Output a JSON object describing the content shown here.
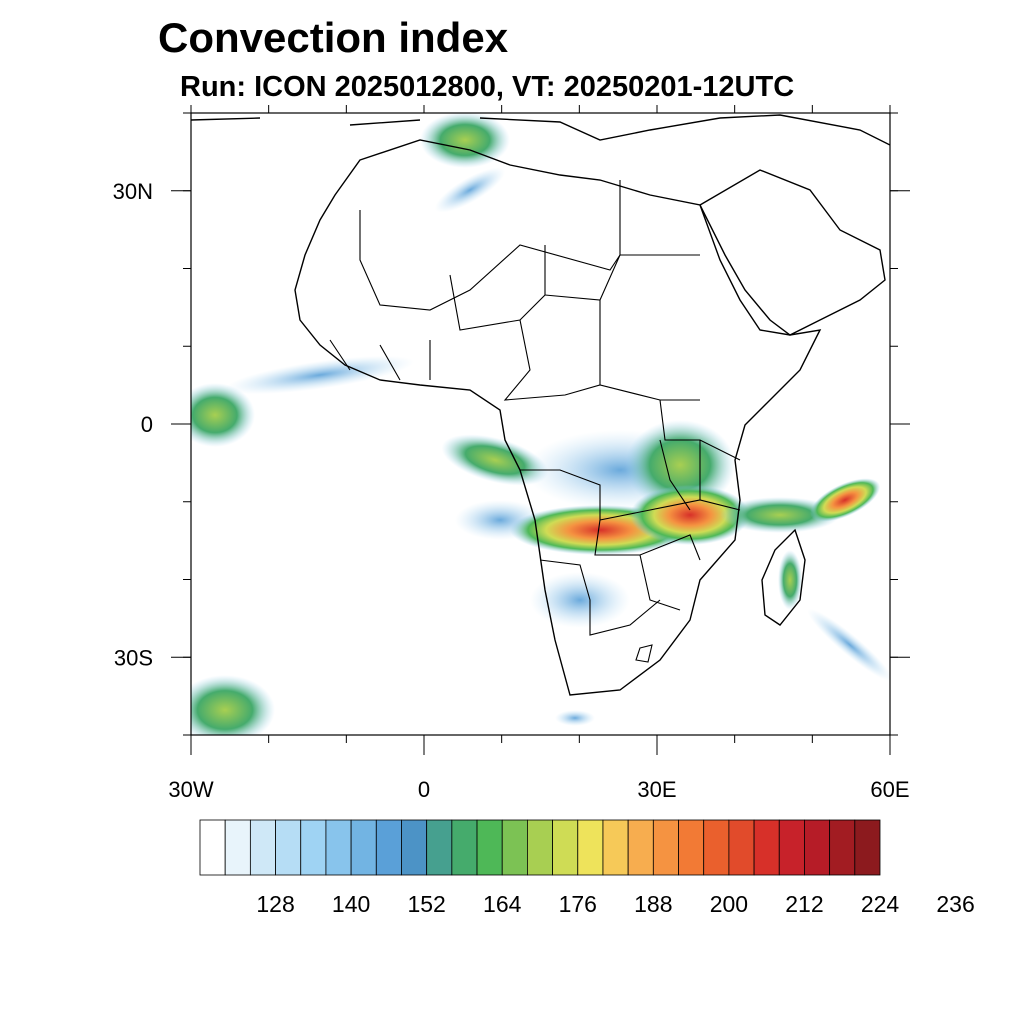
{
  "title": "Convection index",
  "subtitle": "Run: ICON 2025012800,  VT: 20250201-12UTC",
  "map": {
    "lon_range": [
      -30,
      60
    ],
    "lat_range": [
      -40,
      40
    ],
    "lon_ticks": [
      {
        "value": -30,
        "label": "30W"
      },
      {
        "value": 0,
        "label": "0"
      },
      {
        "value": 30,
        "label": "30E"
      },
      {
        "value": 60,
        "label": "60E"
      }
    ],
    "lat_ticks": [
      {
        "value": 30,
        "label": "30N"
      },
      {
        "value": 0,
        "label": "0"
      },
      {
        "value": -30,
        "label": "30S"
      }
    ],
    "minor_lon_step": 10,
    "minor_lat_step": 10
  },
  "colorbar": {
    "colors": [
      "#ffffff",
      "#e8f4fb",
      "#cfe8f7",
      "#b6ddf5",
      "#9fd3f3",
      "#88c4ec",
      "#72b4e3",
      "#5aa0d8",
      "#4c93c6",
      "#46a08f",
      "#45ab6c",
      "#4eb857",
      "#7cc254",
      "#a8cf52",
      "#cfdc55",
      "#eee35b",
      "#f6c958",
      "#f7ad4f",
      "#f59341",
      "#f27a35",
      "#ea602d",
      "#e14b2b",
      "#d73029",
      "#c7222a",
      "#b61c27",
      "#a21c22",
      "#8c1a1e"
    ],
    "labels": [
      "128",
      "140",
      "152",
      "164",
      "176",
      "188",
      "200",
      "212",
      "224",
      "236"
    ]
  }
}
